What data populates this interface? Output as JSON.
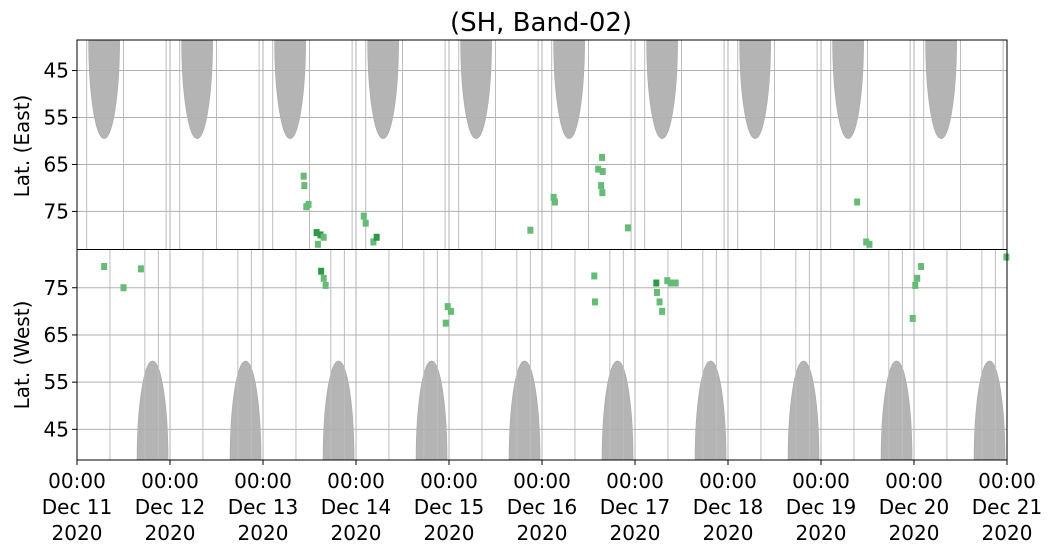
{
  "chart_data": {
    "type": "heatmap",
    "title": "(SH, Band-02)",
    "xlim": [
      "2020-12-11T00:00",
      "2020-12-21T00:00"
    ],
    "x_tick_labels": [
      {
        "time": "00:00",
        "date": "Dec 11",
        "year": "2020"
      },
      {
        "time": "00:00",
        "date": "Dec 12",
        "year": "2020"
      },
      {
        "time": "00:00",
        "date": "Dec 13",
        "year": "2020"
      },
      {
        "time": "00:00",
        "date": "Dec 14",
        "year": "2020"
      },
      {
        "time": "00:00",
        "date": "Dec 15",
        "year": "2020"
      },
      {
        "time": "00:00",
        "date": "Dec 16",
        "year": "2020"
      },
      {
        "time": "00:00",
        "date": "Dec 17",
        "year": "2020"
      },
      {
        "time": "00:00",
        "date": "Dec 18",
        "year": "2020"
      },
      {
        "time": "00:00",
        "date": "Dec 19",
        "year": "2020"
      },
      {
        "time": "00:00",
        "date": "Dec 20",
        "year": "2020"
      },
      {
        "time": "00:00",
        "date": "Dec 21",
        "year": "2020"
      }
    ],
    "grid": true,
    "colors": {
      "coverage": "#b4b4b4",
      "detection_light": "#66bb77",
      "detection_dark": "#2e9a48",
      "grid": "#b0b0b0"
    },
    "panels": [
      {
        "ylabel": "Lat. (East)",
        "ylim": [
          38.5,
          83
        ],
        "y_ticks": [
          45,
          55,
          65,
          75
        ],
        "orientation": "top",
        "coverage_lobes": [
          {
            "center": "2020-12-11T07:00",
            "half_width_hours": 4,
            "edge_lat": 59.5
          },
          {
            "center": "2020-12-12T07:00",
            "half_width_hours": 4,
            "edge_lat": 59.5
          },
          {
            "center": "2020-12-13T07:00",
            "half_width_hours": 4,
            "edge_lat": 59.5
          },
          {
            "center": "2020-12-14T07:00",
            "half_width_hours": 4,
            "edge_lat": 59.5
          },
          {
            "center": "2020-12-15T07:00",
            "half_width_hours": 4,
            "edge_lat": 59.5
          },
          {
            "center": "2020-12-16T07:00",
            "half_width_hours": 4,
            "edge_lat": 59.5
          },
          {
            "center": "2020-12-17T07:00",
            "half_width_hours": 4,
            "edge_lat": 59.5
          },
          {
            "center": "2020-12-18T07:00",
            "half_width_hours": 4,
            "edge_lat": 59.5
          },
          {
            "center": "2020-12-19T07:00",
            "half_width_hours": 4,
            "edge_lat": 59.5
          },
          {
            "center": "2020-12-20T07:00",
            "half_width_hours": 4,
            "edge_lat": 59.5
          }
        ],
        "detections": [
          {
            "time": "2020-12-13T10:30",
            "lat": 67.5,
            "level": 1
          },
          {
            "time": "2020-12-13T10:40",
            "lat": 69.5,
            "level": 1
          },
          {
            "time": "2020-12-13T11:10",
            "lat": 74.0,
            "level": 1
          },
          {
            "time": "2020-12-13T11:45",
            "lat": 73.5,
            "level": 1
          },
          {
            "time": "2020-12-13T13:50",
            "lat": 79.5,
            "level": 2
          },
          {
            "time": "2020-12-13T14:50",
            "lat": 80.0,
            "level": 2
          },
          {
            "time": "2020-12-13T15:40",
            "lat": 80.5,
            "level": 1
          },
          {
            "time": "2020-12-13T14:10",
            "lat": 82.0,
            "level": 1
          },
          {
            "time": "2020-12-14T02:00",
            "lat": 76.0,
            "level": 1
          },
          {
            "time": "2020-12-14T02:30",
            "lat": 77.5,
            "level": 1
          },
          {
            "time": "2020-12-14T04:30",
            "lat": 81.5,
            "level": 1
          },
          {
            "time": "2020-12-14T05:20",
            "lat": 80.5,
            "level": 2
          },
          {
            "time": "2020-12-15T21:00",
            "lat": 79.0,
            "level": 1
          },
          {
            "time": "2020-12-16T03:00",
            "lat": 72.0,
            "level": 1
          },
          {
            "time": "2020-12-16T03:20",
            "lat": 73.0,
            "level": 1
          },
          {
            "time": "2020-12-16T14:30",
            "lat": 66.0,
            "level": 1
          },
          {
            "time": "2020-12-16T15:30",
            "lat": 63.5,
            "level": 1
          },
          {
            "time": "2020-12-16T15:40",
            "lat": 66.5,
            "level": 1
          },
          {
            "time": "2020-12-16T15:15",
            "lat": 69.5,
            "level": 1
          },
          {
            "time": "2020-12-16T15:35",
            "lat": 71.0,
            "level": 1
          },
          {
            "time": "2020-12-16T22:10",
            "lat": 78.5,
            "level": 1
          },
          {
            "time": "2020-12-19T09:20",
            "lat": 73.0,
            "level": 1
          },
          {
            "time": "2020-12-19T11:40",
            "lat": 81.5,
            "level": 1
          },
          {
            "time": "2020-12-19T12:30",
            "lat": 82.0,
            "level": 1
          }
        ]
      },
      {
        "ylabel": "Lat. (West)",
        "ylim": [
          38.5,
          83
        ],
        "y_ticks": [
          45,
          55,
          65,
          75
        ],
        "orientation": "bottom",
        "coverage_lobes": [
          {
            "center": "2020-12-11T19:30",
            "half_width_hours": 4,
            "edge_lat": 59.5
          },
          {
            "center": "2020-12-12T19:30",
            "half_width_hours": 4,
            "edge_lat": 59.5
          },
          {
            "center": "2020-12-13T19:30",
            "half_width_hours": 4,
            "edge_lat": 59.5
          },
          {
            "center": "2020-12-14T19:30",
            "half_width_hours": 4,
            "edge_lat": 59.5
          },
          {
            "center": "2020-12-15T19:30",
            "half_width_hours": 4,
            "edge_lat": 59.5
          },
          {
            "center": "2020-12-16T19:30",
            "half_width_hours": 4,
            "edge_lat": 59.5
          },
          {
            "center": "2020-12-17T19:30",
            "half_width_hours": 4,
            "edge_lat": 59.5
          },
          {
            "center": "2020-12-18T19:30",
            "half_width_hours": 4,
            "edge_lat": 59.5
          },
          {
            "center": "2020-12-19T19:30",
            "half_width_hours": 4,
            "edge_lat": 59.5
          },
          {
            "center": "2020-12-20T19:30",
            "half_width_hours": 4,
            "edge_lat": 59.5
          }
        ],
        "detections": [
          {
            "time": "2020-12-11T07:00",
            "lat": 79.5,
            "level": 1
          },
          {
            "time": "2020-12-11T12:00",
            "lat": 75.0,
            "level": 1
          },
          {
            "time": "2020-12-11T16:30",
            "lat": 79.0,
            "level": 1
          },
          {
            "time": "2020-12-13T15:00",
            "lat": 78.5,
            "level": 2
          },
          {
            "time": "2020-12-13T15:40",
            "lat": 77.0,
            "level": 1
          },
          {
            "time": "2020-12-13T16:10",
            "lat": 75.5,
            "level": 1
          },
          {
            "time": "2020-12-14T23:40",
            "lat": 71.0,
            "level": 1
          },
          {
            "time": "2020-12-15T00:30",
            "lat": 70.0,
            "level": 1
          },
          {
            "time": "2020-12-14T23:10",
            "lat": 67.5,
            "level": 1
          },
          {
            "time": "2020-12-16T13:30",
            "lat": 77.5,
            "level": 1
          },
          {
            "time": "2020-12-16T13:40",
            "lat": 72.0,
            "level": 1
          },
          {
            "time": "2020-12-17T05:30",
            "lat": 76.0,
            "level": 2
          },
          {
            "time": "2020-12-17T05:40",
            "lat": 74.0,
            "level": 1
          },
          {
            "time": "2020-12-17T06:20",
            "lat": 72.0,
            "level": 1
          },
          {
            "time": "2020-12-17T07:00",
            "lat": 70.0,
            "level": 1
          },
          {
            "time": "2020-12-17T08:20",
            "lat": 76.5,
            "level": 1
          },
          {
            "time": "2020-12-17T09:20",
            "lat": 76.0,
            "level": 1
          },
          {
            "time": "2020-12-17T10:30",
            "lat": 76.0,
            "level": 1
          },
          {
            "time": "2020-12-19T23:40",
            "lat": 68.5,
            "level": 1
          },
          {
            "time": "2020-12-20T00:20",
            "lat": 75.5,
            "level": 1
          },
          {
            "time": "2020-12-20T00:50",
            "lat": 77.0,
            "level": 1
          },
          {
            "time": "2020-12-20T01:50",
            "lat": 79.5,
            "level": 1
          },
          {
            "time": "2020-12-20T23:50",
            "lat": 81.5,
            "level": 1
          }
        ]
      }
    ]
  }
}
